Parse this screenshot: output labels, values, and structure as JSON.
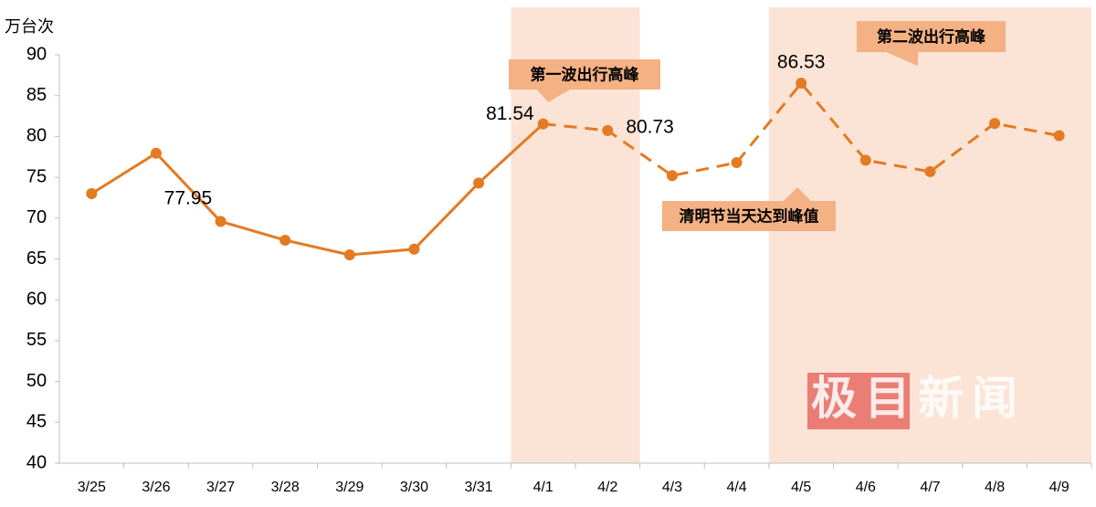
{
  "chart_data": {
    "type": "line",
    "y_axis_label": "万台次",
    "categories": [
      "3/25",
      "3/26",
      "3/27",
      "3/28",
      "3/29",
      "3/30",
      "3/31",
      "4/1",
      "4/2",
      "4/3",
      "4/4",
      "4/5",
      "4/6",
      "4/7",
      "4/8",
      "4/9"
    ],
    "series": [
      {
        "color": "#e47a22",
        "dashed": false,
        "values": [
          73.0,
          77.95,
          69.6,
          67.3,
          65.5,
          66.2,
          74.3,
          81.54,
          null,
          null,
          null,
          null,
          null,
          null,
          null,
          null
        ],
        "value_labels": [
          null,
          "77.95",
          null,
          null,
          null,
          null,
          null,
          "81.54",
          null,
          null,
          null,
          null,
          null,
          null,
          null,
          null
        ]
      },
      {
        "color": "#e47a22",
        "dashed": true,
        "values": [
          null,
          null,
          null,
          null,
          null,
          null,
          null,
          81.54,
          80.73,
          75.2,
          76.8,
          86.53,
          77.1,
          75.7,
          81.6,
          80.1
        ],
        "value_labels": [
          null,
          null,
          null,
          null,
          null,
          null,
          null,
          null,
          "80.73",
          null,
          null,
          "86.53",
          null,
          null,
          null,
          null
        ]
      }
    ],
    "highlight_ranges": [
      [
        7,
        8
      ],
      [
        11,
        15
      ]
    ],
    "highlight_color": "#fbe4d5",
    "annotations": [
      "第一波出行高峰",
      "清明节当天达到峰值",
      "第二波出行高峰"
    ],
    "annotation_color": "#f4b183",
    "watermark": "极目新闻",
    "ylim": [
      40,
      90
    ],
    "yticks": [
      40,
      45,
      50,
      55,
      60,
      65,
      70,
      75,
      80,
      85,
      90
    ],
    "grid": false
  }
}
